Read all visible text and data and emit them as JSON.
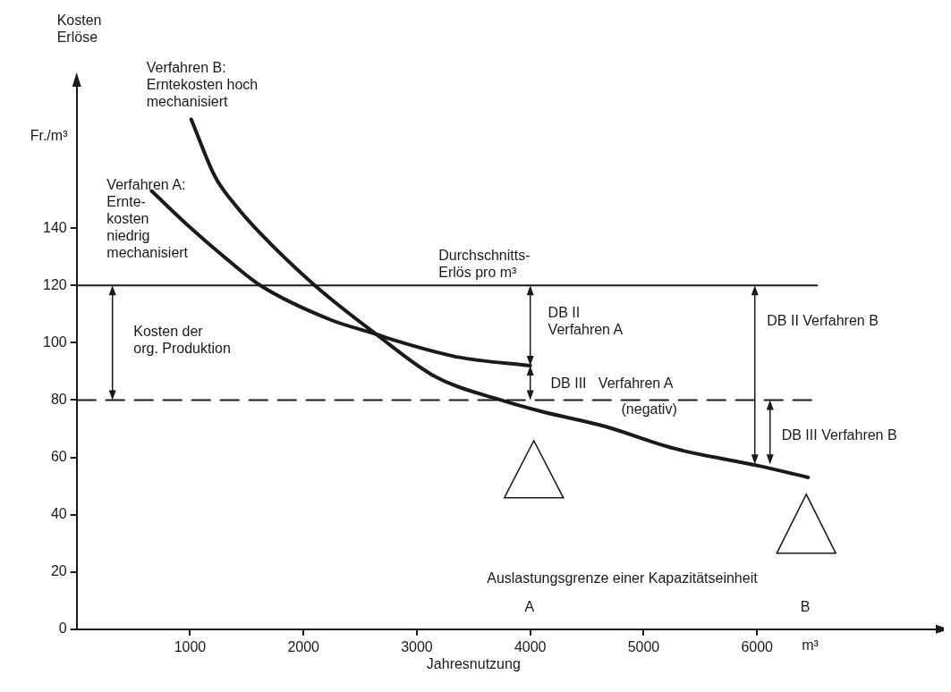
{
  "chart_data": {
    "type": "line",
    "ylabel": "Kosten\nErlöse",
    "xlabel": "Jahresnutzung",
    "xlim": [
      0,
      7600
    ],
    "xticks": [
      1000,
      2000,
      3000,
      4000,
      5000,
      6000
    ],
    "ylim": [
      0,
      190
    ],
    "yticks": [
      0,
      20,
      40,
      60,
      80,
      100,
      120,
      140
    ],
    "grid": false,
    "legend": false,
    "marker": "none",
    "line_style": "solid",
    "series": [
      {
        "name": "Verfahren A:\nErnte-\nkosten\nniedrig\nmechanisiert",
        "color": "#1a1a1a",
        "x": [
          660,
          980,
          1300,
          1620,
          2240,
          2640,
          2790,
          3360,
          4000
        ],
        "values": [
          153,
          141,
          130,
          120,
          108,
          103,
          101,
          95,
          92
        ]
      },
      {
        "name": "Verfahren B:\nErntekosten hoch\nmechanisiert",
        "color": "#1a1a1a",
        "x": [
          1010,
          1220,
          1400,
          1600,
          2100,
          2640,
          3170,
          3740,
          4100,
          4640,
          5280,
          6020,
          6450
        ],
        "values": [
          178,
          158,
          148,
          139,
          120,
          103,
          88,
          80,
          76,
          71,
          63,
          57,
          53
        ]
      }
    ],
    "ref_lines": [
      {
        "axis": "y",
        "value": 120,
        "label": "Durchschnitts-\nErlös pro m³",
        "line_style": "solid",
        "color": "#1a1a1a"
      },
      {
        "axis": "y",
        "value": 80,
        "line_style": "dashed",
        "color": "#1a1a1a"
      }
    ],
    "annotations": [
      "Fr./m³",
      "m³",
      "Kosten der\norg. Produktion",
      "DB II\nVerfahren A",
      "DB III   Verfahren A",
      "(negativ)",
      "DB II Verfahren B",
      "DB III Verfahren B",
      "Auslastungsgrenze einer Kapazitätseinheit",
      "A",
      "B"
    ]
  }
}
